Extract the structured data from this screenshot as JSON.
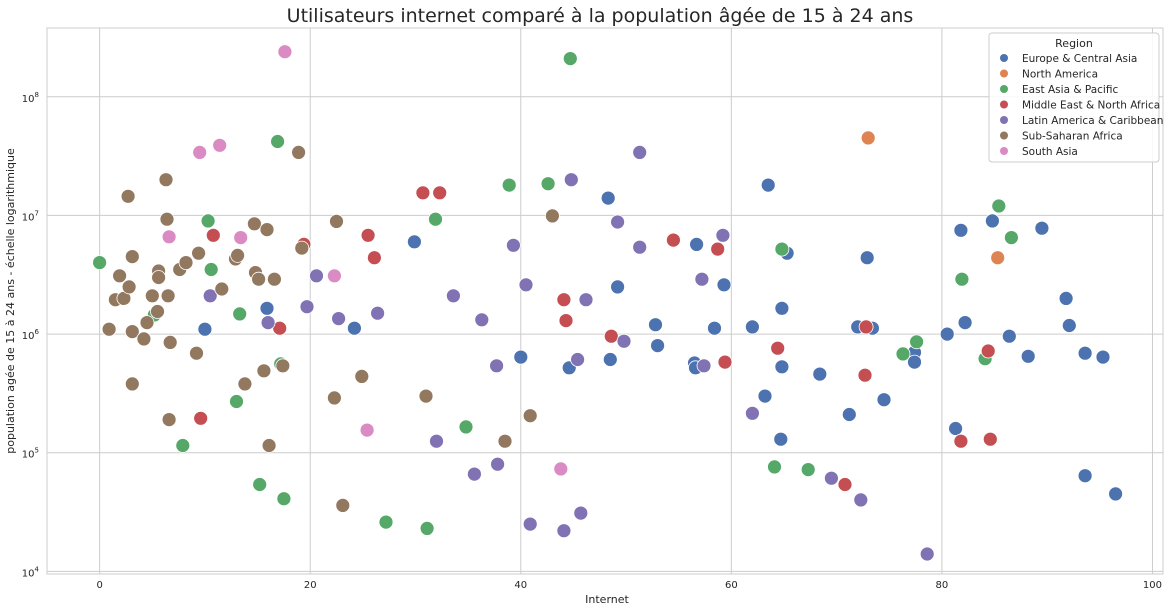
{
  "chart_data": {
    "type": "scatter",
    "title": "Utilisateurs internet comparé à la population âgée de 15 à 24 ans",
    "xlabel": "Internet",
    "ylabel": "population agée de 15 à 24 ans - échelle logarithmique",
    "xlim": [
      -5,
      101
    ],
    "ylim": [
      9500,
      380000000
    ],
    "yscale": "log",
    "grid": true,
    "legend_placement": "top-right",
    "legend_title": "Region",
    "x_ticks": [
      {
        "value": 0,
        "label": "0"
      },
      {
        "value": 20,
        "label": "20"
      },
      {
        "value": 40,
        "label": "40"
      },
      {
        "value": 60,
        "label": "60"
      },
      {
        "value": 80,
        "label": "80"
      },
      {
        "value": 100,
        "label": "100"
      }
    ],
    "y_ticks": [
      {
        "value": 10000,
        "base": "10",
        "exp": "4"
      },
      {
        "value": 100000,
        "base": "10",
        "exp": "5"
      },
      {
        "value": 1000000,
        "base": "10",
        "exp": "6"
      },
      {
        "value": 10000000,
        "base": "10",
        "exp": "7"
      },
      {
        "value": 100000000,
        "base": "10",
        "exp": "8"
      }
    ],
    "series": [
      {
        "name": "Europe & Central Asia",
        "color": "#4c72b0",
        "points": [
          [
            15.9,
            1650000
          ],
          [
            10.0,
            1100000
          ],
          [
            24.2,
            1120000
          ],
          [
            29.9,
            6000000
          ],
          [
            40.0,
            640000
          ],
          [
            44.6,
            520000
          ],
          [
            48.3,
            14000000
          ],
          [
            48.5,
            610000
          ],
          [
            49.2,
            2500000
          ],
          [
            52.8,
            1200000
          ],
          [
            53.0,
            800000
          ],
          [
            56.5,
            570000
          ],
          [
            56.7,
            5700000
          ],
          [
            56.6,
            520000
          ],
          [
            58.4,
            1120000
          ],
          [
            59.3,
            2600000
          ],
          [
            62.0,
            1150000
          ],
          [
            63.2,
            300000
          ],
          [
            63.5,
            18000000
          ],
          [
            64.8,
            1650000
          ],
          [
            64.8,
            530000
          ],
          [
            64.7,
            130000
          ],
          [
            65.3,
            4800000
          ],
          [
            68.4,
            460000
          ],
          [
            71.2,
            210000
          ],
          [
            72.0,
            1150000
          ],
          [
            72.9,
            4400000
          ],
          [
            73.4,
            1120000
          ],
          [
            74.5,
            280000
          ],
          [
            77.4,
            700000
          ],
          [
            77.4,
            580000
          ],
          [
            80.5,
            1000000
          ],
          [
            81.3,
            160000
          ],
          [
            81.8,
            7500000
          ],
          [
            82.2,
            1250000
          ],
          [
            84.8,
            9000000
          ],
          [
            86.4,
            960000
          ],
          [
            88.2,
            650000
          ],
          [
            89.5,
            7800000
          ],
          [
            91.8,
            2000000
          ],
          [
            92.1,
            1180000
          ],
          [
            93.6,
            690000
          ],
          [
            93.6,
            64000
          ],
          [
            95.3,
            640000
          ],
          [
            96.5,
            45000
          ]
        ]
      },
      {
        "name": "North America",
        "color": "#dd8452",
        "points": [
          [
            73.0,
            45000000
          ],
          [
            85.3,
            4400000
          ]
        ]
      },
      {
        "name": "East Asia & Pacific",
        "color": "#55a868",
        "points": [
          [
            0.0,
            4000000
          ],
          [
            5.2,
            1450000
          ],
          [
            7.9,
            115000
          ],
          [
            10.3,
            9000000
          ],
          [
            10.6,
            3500000
          ],
          [
            13.0,
            270000
          ],
          [
            13.3,
            1480000
          ],
          [
            15.2,
            54000
          ],
          [
            16.9,
            42000000
          ],
          [
            17.2,
            560000
          ],
          [
            17.5,
            41000
          ],
          [
            27.2,
            26000
          ],
          [
            31.1,
            23000
          ],
          [
            31.9,
            9300000
          ],
          [
            34.8,
            165000
          ],
          [
            38.9,
            18000000
          ],
          [
            42.6,
            18500000
          ],
          [
            44.7,
            210000000
          ],
          [
            64.1,
            76000
          ],
          [
            64.8,
            5200000
          ],
          [
            67.3,
            72000
          ],
          [
            76.3,
            680000
          ],
          [
            77.6,
            860000
          ],
          [
            81.9,
            2900000
          ],
          [
            84.1,
            620000
          ],
          [
            85.4,
            12000000
          ],
          [
            86.6,
            6500000
          ]
        ]
      },
      {
        "name": "Middle East & North Africa",
        "color": "#c44e52",
        "points": [
          [
            9.6,
            195000
          ],
          [
            10.8,
            6800000
          ],
          [
            17.1,
            1120000
          ],
          [
            19.4,
            5700000
          ],
          [
            25.5,
            6800000
          ],
          [
            26.1,
            4400000
          ],
          [
            30.7,
            15500000
          ],
          [
            32.3,
            15500000
          ],
          [
            44.1,
            1950000
          ],
          [
            44.3,
            1300000
          ],
          [
            48.6,
            960000
          ],
          [
            54.5,
            6200000
          ],
          [
            58.7,
            5200000
          ],
          [
            59.4,
            580000
          ],
          [
            64.4,
            760000
          ],
          [
            70.8,
            54000
          ],
          [
            72.8,
            1150000
          ],
          [
            72.7,
            450000
          ],
          [
            81.8,
            125000
          ],
          [
            84.4,
            720000
          ],
          [
            84.6,
            130000
          ]
        ]
      },
      {
        "name": "Latin America & Caribbean",
        "color": "#8172b3",
        "points": [
          [
            10.5,
            2100000
          ],
          [
            16.0,
            1250000
          ],
          [
            19.7,
            1700000
          ],
          [
            20.6,
            3100000
          ],
          [
            22.7,
            1350000
          ],
          [
            26.4,
            1500000
          ],
          [
            32.0,
            125000
          ],
          [
            33.6,
            2100000
          ],
          [
            35.6,
            66000
          ],
          [
            36.3,
            1320000
          ],
          [
            37.7,
            540000
          ],
          [
            37.8,
            80000
          ],
          [
            39.3,
            5600000
          ],
          [
            40.5,
            2600000
          ],
          [
            40.9,
            25000
          ],
          [
            44.1,
            22000
          ],
          [
            44.8,
            20000000
          ],
          [
            45.4,
            610000
          ],
          [
            45.7,
            31000
          ],
          [
            46.2,
            1950000
          ],
          [
            49.2,
            8800000
          ],
          [
            49.8,
            870000
          ],
          [
            51.3,
            5400000
          ],
          [
            51.3,
            34000000
          ],
          [
            57.2,
            2900000
          ],
          [
            57.4,
            540000
          ],
          [
            59.2,
            6800000
          ],
          [
            62.0,
            215000
          ],
          [
            69.5,
            61000
          ],
          [
            72.3,
            40000
          ],
          [
            78.6,
            14000
          ]
        ]
      },
      {
        "name": "Sub-Saharan Africa",
        "color": "#937860",
        "points": [
          [
            0.9,
            1100000
          ],
          [
            1.5,
            1950000
          ],
          [
            1.9,
            3100000
          ],
          [
            2.3,
            2000000
          ],
          [
            2.7,
            14500000
          ],
          [
            2.8,
            2500000
          ],
          [
            3.1,
            4500000
          ],
          [
            3.1,
            1050000
          ],
          [
            3.1,
            380000
          ],
          [
            4.2,
            910000
          ],
          [
            4.5,
            1250000
          ],
          [
            5.0,
            2100000
          ],
          [
            5.6,
            3400000
          ],
          [
            5.6,
            3000000
          ],
          [
            5.5,
            1550000
          ],
          [
            6.3,
            20000000
          ],
          [
            6.4,
            9300000
          ],
          [
            6.5,
            2100000
          ],
          [
            6.6,
            190000
          ],
          [
            6.7,
            850000
          ],
          [
            7.6,
            3500000
          ],
          [
            8.2,
            4000000
          ],
          [
            9.2,
            690000
          ],
          [
            9.4,
            4800000
          ],
          [
            11.6,
            2400000
          ],
          [
            12.9,
            4300000
          ],
          [
            13.1,
            4600000
          ],
          [
            13.8,
            380000
          ],
          [
            14.7,
            8500000
          ],
          [
            14.8,
            3300000
          ],
          [
            15.1,
            2900000
          ],
          [
            15.6,
            490000
          ],
          [
            15.9,
            7600000
          ],
          [
            16.1,
            115000
          ],
          [
            16.6,
            2900000
          ],
          [
            17.4,
            540000
          ],
          [
            18.9,
            34000000
          ],
          [
            19.2,
            5300000
          ],
          [
            22.3,
            290000
          ],
          [
            22.5,
            8900000
          ],
          [
            23.1,
            36000
          ],
          [
            24.9,
            440000
          ],
          [
            31.0,
            300000
          ],
          [
            38.5,
            125000
          ],
          [
            40.9,
            205000
          ],
          [
            43.0,
            9900000
          ]
        ]
      },
      {
        "name": "South Asia",
        "color": "#da8bc3",
        "points": [
          [
            6.6,
            6600000
          ],
          [
            9.5,
            34000000
          ],
          [
            11.4,
            39000000
          ],
          [
            13.4,
            6500000
          ],
          [
            17.6,
            240000000
          ],
          [
            22.3,
            3100000
          ],
          [
            25.4,
            155000
          ],
          [
            43.8,
            73000
          ]
        ]
      }
    ]
  }
}
